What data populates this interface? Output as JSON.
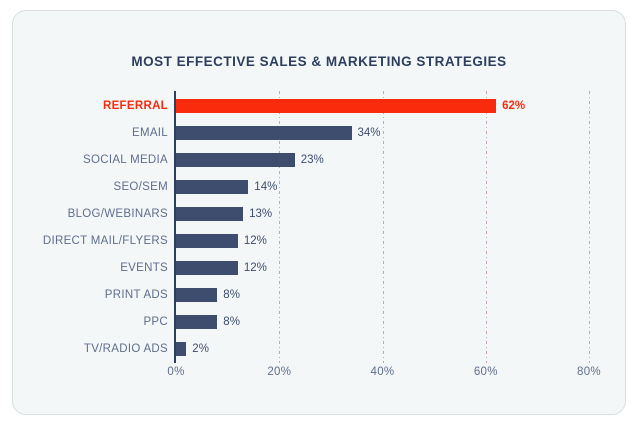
{
  "chart_data": {
    "type": "bar",
    "orientation": "horizontal",
    "title": "MOST EFFECTIVE SALES & MARKETING STRATEGIES",
    "categories": [
      "REFERRAL",
      "EMAIL",
      "SOCIAL MEDIA",
      "SEO/SEM",
      "BLOG/WEBINARS",
      "DIRECT MAIL/FLYERS",
      "EVENTS",
      "PRINT ADS",
      "PPC",
      "TV/RADIO ADS"
    ],
    "values": [
      62,
      34,
      23,
      14,
      13,
      12,
      12,
      8,
      8,
      2
    ],
    "value_labels": [
      "62%",
      "34%",
      "23%",
      "14%",
      "13%",
      "12%",
      "12%",
      "8%",
      "8%",
      "2%"
    ],
    "highlight_index": 0,
    "xlabel": "",
    "ylabel": "",
    "xlim": [
      0,
      80
    ],
    "x_ticks": [
      {
        "value": 0,
        "label": "0%"
      },
      {
        "value": 20,
        "label": "20%"
      },
      {
        "value": 40,
        "label": "40%"
      },
      {
        "value": 60,
        "label": "60%"
      },
      {
        "value": 80,
        "label": "80%"
      }
    ],
    "grid": "vertical-dash-dot",
    "legend": "none",
    "colors": {
      "bar": "#3e4d6e",
      "highlight_bar": "#fa2b0c",
      "category_label": "#5f6e8c",
      "value_label": "#3e4d6e",
      "title": "#2d3e5f",
      "gridline": "#c9a3bc",
      "axis": "#2d3e5f",
      "card_background": "#f3f7f8",
      "card_border": "#d9dee1"
    }
  }
}
